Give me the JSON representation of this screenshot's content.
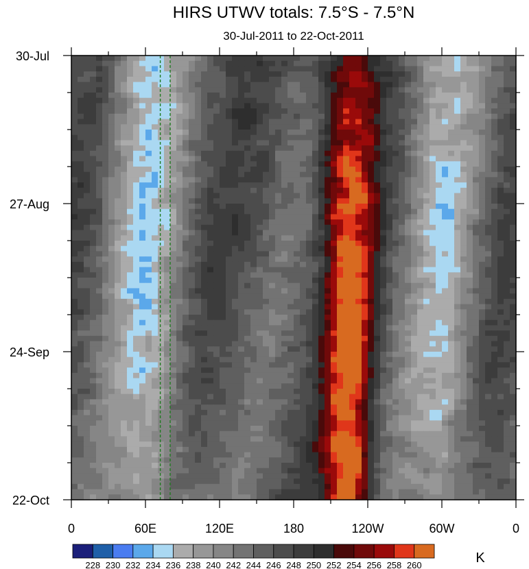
{
  "chart_data": {
    "type": "heatmap",
    "title": "HIRS UTWV totals: 7.5°S - 7.5°N",
    "subtitle": "30-Jul-2011 to 22-Oct-2011",
    "y_axis": {
      "ticks": [
        "30-Jul",
        "27-Aug",
        "24-Sep",
        "22-Oct"
      ],
      "range": [
        "2011-07-30",
        "2011-10-22"
      ],
      "inverted": true
    },
    "x_axis": {
      "ticks": [
        "0",
        "60E",
        "120E",
        "180",
        "120W",
        "60W",
        "0"
      ],
      "range_deg_east": [
        0,
        360
      ]
    },
    "colorbar": {
      "unit": "K",
      "levels": [
        228,
        230,
        232,
        234,
        236,
        238,
        240,
        242,
        244,
        246,
        248,
        250,
        252,
        254,
        256,
        258,
        260
      ],
      "colors": [
        "#1b1f7a",
        "#1f5fa8",
        "#4a7cf0",
        "#5ba8ea",
        "#aad8f2",
        "#ababab",
        "#979797",
        "#868686",
        "#737373",
        "#5f5f5f",
        "#4c4c4c",
        "#3c3c3c",
        "#2e2e2e",
        "#4a0a0a",
        "#700a0a",
        "#9a0a0a",
        "#e0361a",
        "#d86a20"
      ]
    },
    "reference_lines_lon": [
      72,
      80
    ],
    "field_ridges": [
      {
        "kind": "wet",
        "lon_at_start": 60,
        "lon_at_end": 65,
        "peak_K": 234
      },
      {
        "kind": "wet",
        "lon_at_start": 300,
        "lon_at_end": 302,
        "peak_K": 236
      },
      {
        "kind": "dry",
        "lon_at_start": 215,
        "lon_at_end": 220,
        "peak_K": 258
      },
      {
        "kind": "dry",
        "lon_at_start": 235,
        "lon_at_end": 230,
        "peak_K": 256
      }
    ]
  }
}
